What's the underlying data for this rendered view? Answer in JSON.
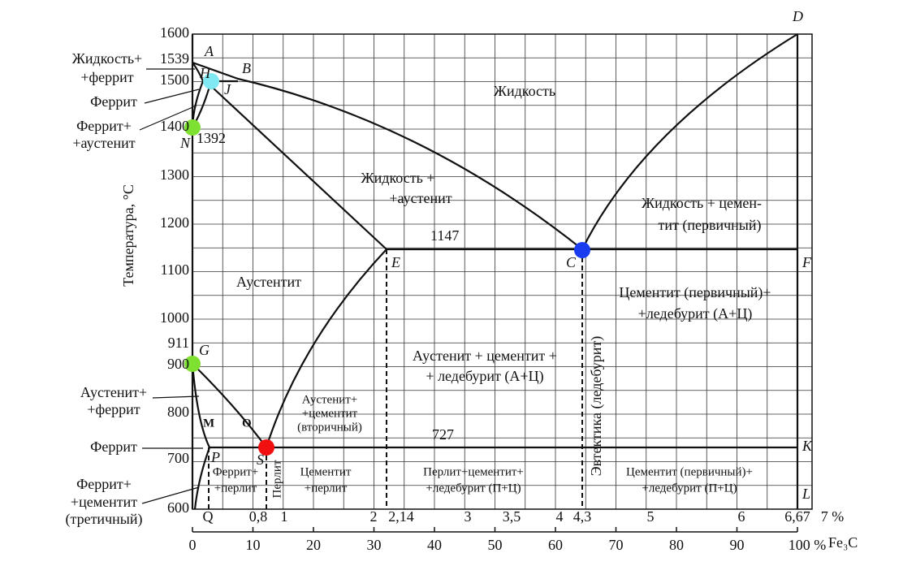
{
  "axis": {
    "y_label": "Температура, °C",
    "y_ticks": [
      "1600",
      "1500",
      "1400",
      "1300",
      "1200",
      "1100",
      "1000",
      "900",
      "800",
      "700",
      "600"
    ],
    "c_ticks": [
      "Q",
      "0,8",
      "1",
      "2",
      "2,14",
      "3",
      "3,5",
      "4",
      "4,3",
      "5",
      "6",
      "6,67",
      "7 %"
    ],
    "fe3c_ticks": [
      "0",
      "10",
      "20",
      "30",
      "40",
      "50",
      "60",
      "70",
      "80",
      "90",
      "100 %"
    ],
    "fe3c_unit": "Fe₃C"
  },
  "points": [
    "A",
    "B",
    "H",
    "J",
    "N",
    "E",
    "C",
    "F",
    "D",
    "G",
    "S",
    "P",
    "K",
    "L",
    "M",
    "O"
  ],
  "temperatures": [
    "1539",
    "1392",
    "1147",
    "911",
    "727"
  ],
  "regions": [
    "Жидкость",
    "Жидкость +",
    "+аустенит",
    "Жидкость + цемен-",
    "тит (первичный)",
    "Аустентит",
    "Цементит (первичный)+",
    "+ледебурит (А+Ц)",
    "Аустенит + цементит +",
    "+ ледебурит (А+Ц)",
    "Аустенит+",
    "+цементит",
    "(вторичный)",
    "Феррит+",
    "+перлит",
    "Перлит",
    "Цементит",
    "+перлит",
    "Перлит+цементит+",
    "+ледебурит (П+Ц)",
    "Цементит (первичный)+",
    "+ледебурит (П+Ц)",
    "Эвтектика (ледебурит)"
  ],
  "side_labels": [
    "Жидкость+",
    "+феррит",
    "Феррит",
    "Феррит+",
    "+аустенит",
    "Аустенит+",
    "+феррит",
    "Феррит",
    "Феррит+",
    "+цементит",
    "(третичный)"
  ]
}
